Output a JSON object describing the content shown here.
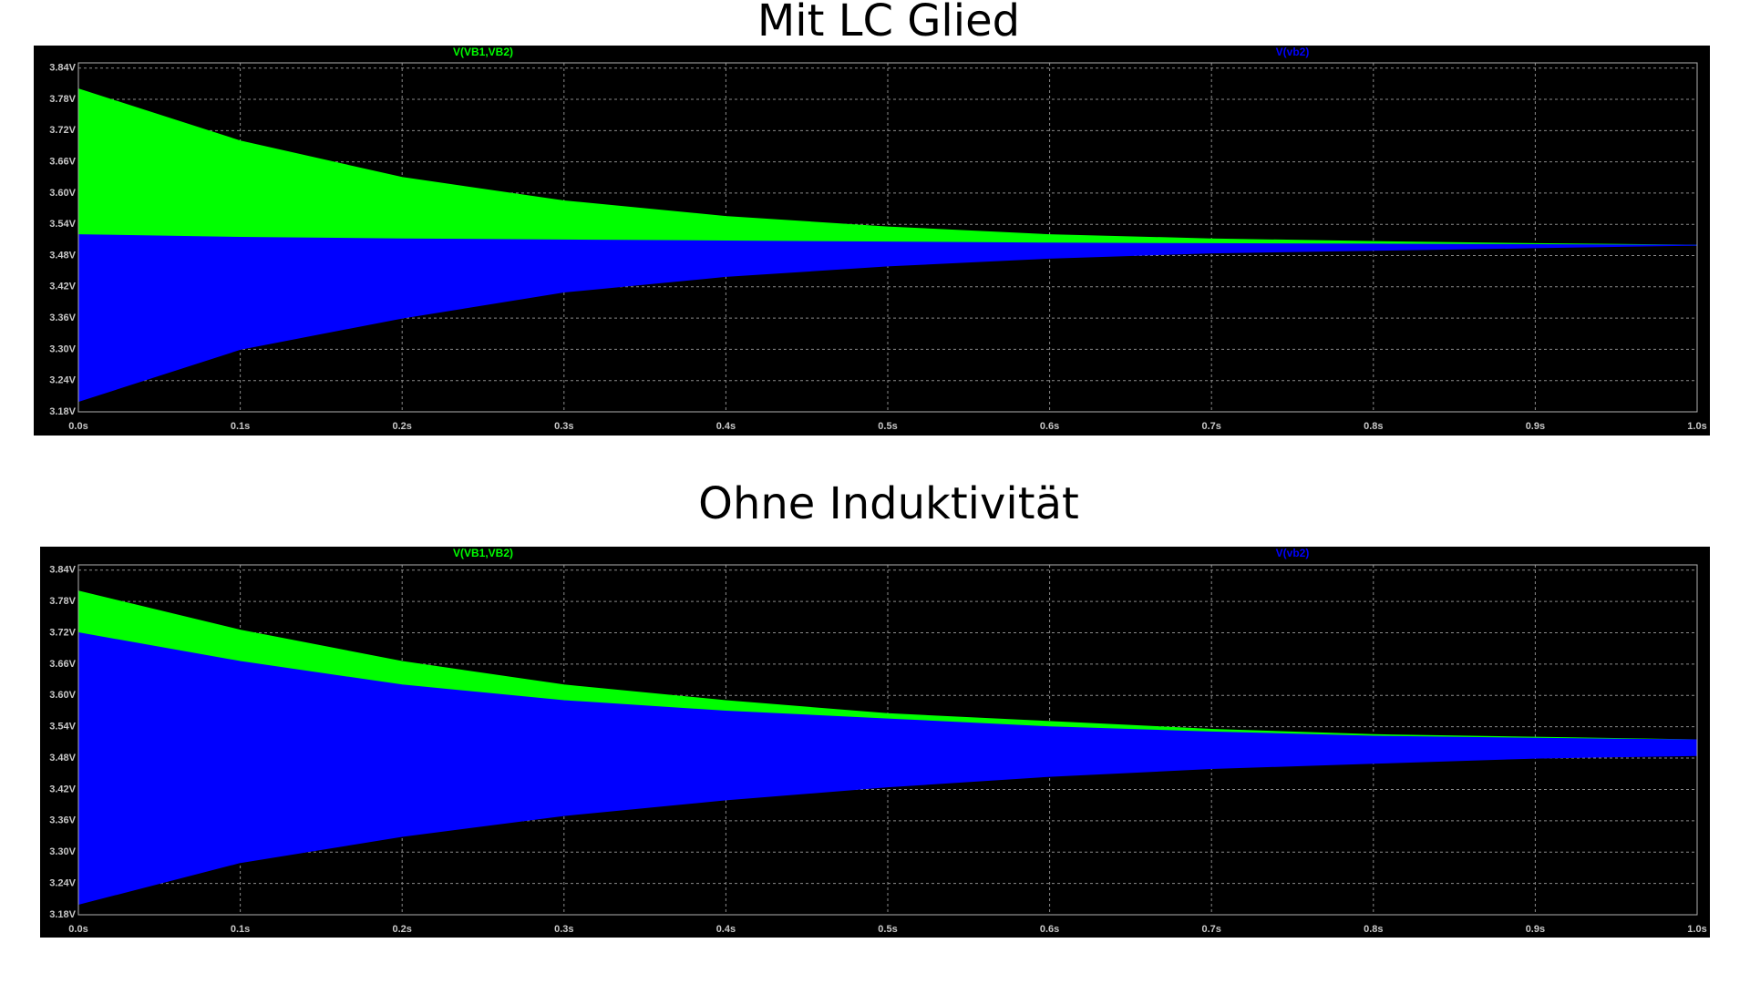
{
  "chart_data": [
    {
      "type": "band",
      "title": "Mit LC Glied",
      "x": [
        0,
        0.1,
        0.2,
        0.3,
        0.4,
        0.5,
        0.6,
        0.7,
        0.8,
        0.9,
        1.0
      ],
      "series": [
        {
          "name": "V(VB1,VB2)",
          "color": "#00ff00",
          "upper": [
            3.8,
            3.7,
            3.63,
            3.585,
            3.555,
            3.535,
            3.52,
            3.512,
            3.507,
            3.503,
            3.5
          ],
          "lower": [
            3.52,
            3.515,
            3.512,
            3.51,
            3.508,
            3.506,
            3.504,
            3.503,
            3.502,
            3.501,
            3.5
          ]
        },
        {
          "name": "V(vb2)",
          "color": "#0000ff",
          "upper": [
            3.52,
            3.515,
            3.512,
            3.51,
            3.508,
            3.506,
            3.504,
            3.503,
            3.502,
            3.501,
            3.5
          ],
          "lower": [
            3.2,
            3.3,
            3.36,
            3.41,
            3.44,
            3.46,
            3.475,
            3.485,
            3.49,
            3.495,
            3.5
          ]
        }
      ],
      "xlim": [
        0,
        1.0
      ],
      "ylim": [
        3.18,
        3.85
      ],
      "xticks": [
        {
          "value": 0,
          "label": "0.0s"
        },
        {
          "value": 0.1,
          "label": "0.1s"
        },
        {
          "value": 0.2,
          "label": "0.2s"
        },
        {
          "value": 0.3,
          "label": "0.3s"
        },
        {
          "value": 0.4,
          "label": "0.4s"
        },
        {
          "value": 0.5,
          "label": "0.5s"
        },
        {
          "value": 0.6,
          "label": "0.6s"
        },
        {
          "value": 0.7,
          "label": "0.7s"
        },
        {
          "value": 0.8,
          "label": "0.8s"
        },
        {
          "value": 0.9,
          "label": "0.9s"
        },
        {
          "value": 1.0,
          "label": "1.0s"
        }
      ],
      "yticks": [
        {
          "value": 3.18,
          "label": "3.18V"
        },
        {
          "value": 3.24,
          "label": "3.24V"
        },
        {
          "value": 3.3,
          "label": "3.30V"
        },
        {
          "value": 3.36,
          "label": "3.36V"
        },
        {
          "value": 3.42,
          "label": "3.42V"
        },
        {
          "value": 3.48,
          "label": "3.48V"
        },
        {
          "value": 3.54,
          "label": "3.54V"
        },
        {
          "value": 3.6,
          "label": "3.60V"
        },
        {
          "value": 3.66,
          "label": "3.66V"
        },
        {
          "value": 3.72,
          "label": "3.72V"
        },
        {
          "value": 3.78,
          "label": "3.78V"
        },
        {
          "value": 3.84,
          "label": "3.84V"
        }
      ],
      "grid": true
    },
    {
      "type": "band",
      "title": "Ohne Induktivität",
      "x": [
        0,
        0.1,
        0.2,
        0.3,
        0.4,
        0.5,
        0.6,
        0.7,
        0.8,
        0.9,
        1.0
      ],
      "series": [
        {
          "name": "V(VB1,VB2)",
          "color": "#00ff00",
          "upper": [
            3.8,
            3.725,
            3.665,
            3.62,
            3.59,
            3.565,
            3.55,
            3.535,
            3.525,
            3.52,
            3.515
          ],
          "lower": [
            3.72,
            3.665,
            3.62,
            3.59,
            3.57,
            3.555,
            3.54,
            3.53,
            3.522,
            3.518,
            3.515
          ]
        },
        {
          "name": "V(vb2)",
          "color": "#0000ff",
          "upper": [
            3.72,
            3.665,
            3.62,
            3.59,
            3.57,
            3.555,
            3.54,
            3.53,
            3.522,
            3.518,
            3.515
          ],
          "lower": [
            3.2,
            3.28,
            3.33,
            3.37,
            3.4,
            3.425,
            3.445,
            3.46,
            3.47,
            3.48,
            3.485
          ]
        }
      ],
      "xlim": [
        0,
        1.0
      ],
      "ylim": [
        3.18,
        3.85
      ],
      "xticks": [
        {
          "value": 0,
          "label": "0.0s"
        },
        {
          "value": 0.1,
          "label": "0.1s"
        },
        {
          "value": 0.2,
          "label": "0.2s"
        },
        {
          "value": 0.3,
          "label": "0.3s"
        },
        {
          "value": 0.4,
          "label": "0.4s"
        },
        {
          "value": 0.5,
          "label": "0.5s"
        },
        {
          "value": 0.6,
          "label": "0.6s"
        },
        {
          "value": 0.7,
          "label": "0.7s"
        },
        {
          "value": 0.8,
          "label": "0.8s"
        },
        {
          "value": 0.9,
          "label": "0.9s"
        },
        {
          "value": 1.0,
          "label": "1.0s"
        }
      ],
      "yticks": [
        {
          "value": 3.18,
          "label": "3.18V"
        },
        {
          "value": 3.24,
          "label": "3.24V"
        },
        {
          "value": 3.3,
          "label": "3.30V"
        },
        {
          "value": 3.36,
          "label": "3.36V"
        },
        {
          "value": 3.42,
          "label": "3.42V"
        },
        {
          "value": 3.48,
          "label": "3.48V"
        },
        {
          "value": 3.54,
          "label": "3.54V"
        },
        {
          "value": 3.6,
          "label": "3.60V"
        },
        {
          "value": 3.66,
          "label": "3.66V"
        },
        {
          "value": 3.72,
          "label": "3.72V"
        },
        {
          "value": 3.78,
          "label": "3.78V"
        },
        {
          "value": 3.84,
          "label": "3.84V"
        }
      ],
      "grid": true
    }
  ]
}
